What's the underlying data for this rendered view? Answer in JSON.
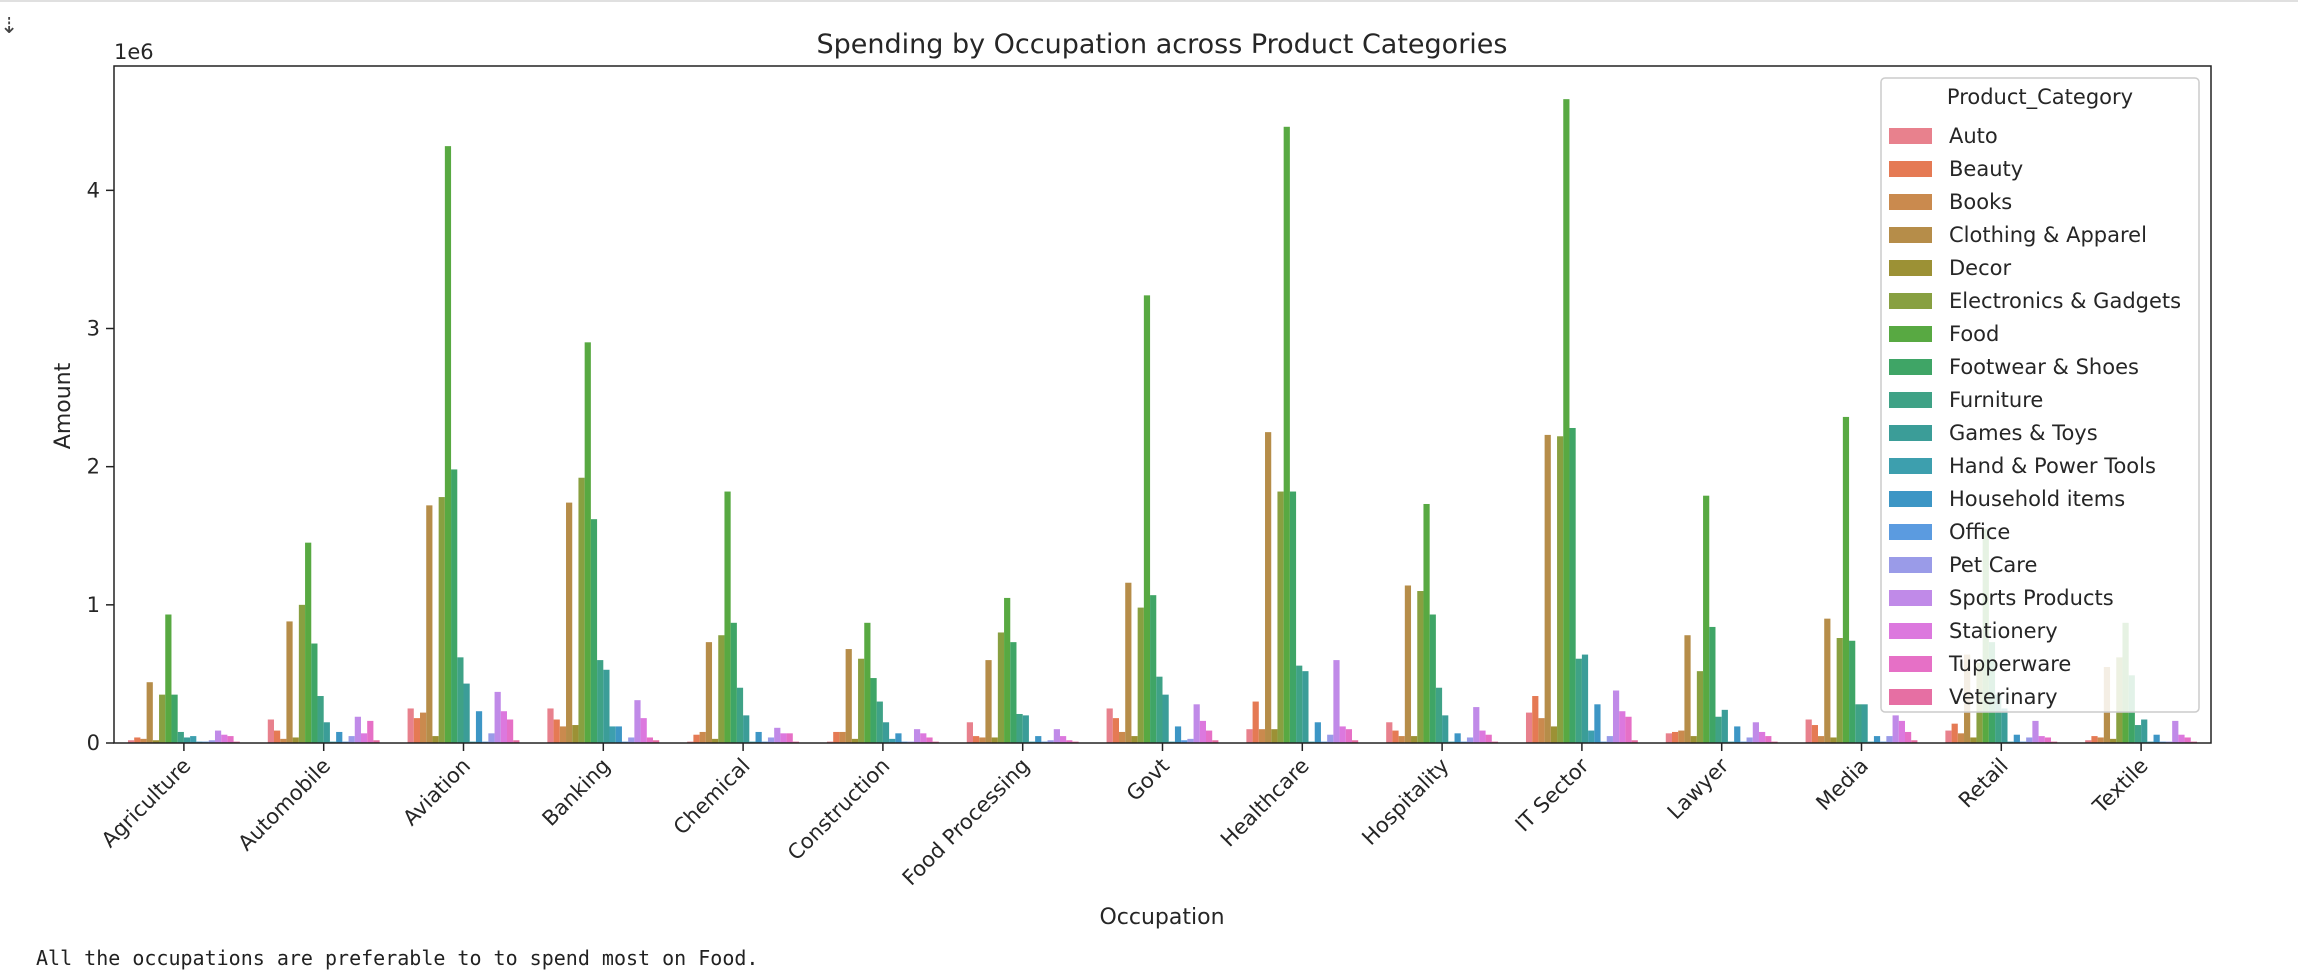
{
  "output_text": "All the occupations are preferable to to spend most on Food.",
  "chart_data": {
    "type": "bar",
    "title": "Spending by Occupation across Product Categories",
    "xlabel": "Occupation",
    "ylabel": "Amount",
    "y_offset_label": "1e6",
    "ylim": [
      0,
      4.9
    ],
    "yticks": [
      0,
      1,
      2,
      3,
      4
    ],
    "legend_title": "Product_Category",
    "legend_position": "top-right",
    "grid": false,
    "categories": [
      "Agriculture",
      "Automobile",
      "Aviation",
      "Banking",
      "Chemical",
      "Construction",
      "Food Processing",
      "Govt",
      "Healthcare",
      "Hospitality",
      "IT Sector",
      "Lawyer",
      "Media",
      "Retail",
      "Textile"
    ],
    "series": [
      {
        "name": "Auto",
        "color": "#e8818d",
        "values": [
          0.02,
          0.17,
          0.25,
          0.25,
          0.01,
          0.01,
          0.15,
          0.25,
          0.1,
          0.15,
          0.22,
          0.07,
          0.17,
          0.09,
          0.02
        ]
      },
      {
        "name": "Beauty",
        "color": "#e57a54",
        "values": [
          0.04,
          0.09,
          0.18,
          0.17,
          0.06,
          0.08,
          0.05,
          0.18,
          0.3,
          0.09,
          0.34,
          0.08,
          0.13,
          0.14,
          0.05
        ]
      },
      {
        "name": "Books",
        "color": "#ca8a4e",
        "values": [
          0.03,
          0.03,
          0.22,
          0.12,
          0.08,
          0.08,
          0.04,
          0.08,
          0.1,
          0.05,
          0.18,
          0.09,
          0.05,
          0.07,
          0.04
        ]
      },
      {
        "name": "Clothing & Apparel",
        "color": "#b68d49",
        "values": [
          0.44,
          0.88,
          1.72,
          1.74,
          0.73,
          0.68,
          0.6,
          1.16,
          2.25,
          1.14,
          2.23,
          0.78,
          0.9,
          0.64,
          0.55
        ]
      },
      {
        "name": "Decor",
        "color": "#9c9135",
        "values": [
          0.02,
          0.04,
          0.05,
          0.13,
          0.03,
          0.03,
          0.04,
          0.05,
          0.1,
          0.05,
          0.12,
          0.05,
          0.04,
          0.04,
          0.03
        ]
      },
      {
        "name": "Electronics & Gadgets",
        "color": "#88a041",
        "values": [
          0.35,
          1.0,
          1.78,
          1.92,
          0.78,
          0.61,
          0.8,
          0.98,
          1.82,
          1.1,
          2.22,
          0.52,
          0.76,
          0.58,
          0.62
        ]
      },
      {
        "name": "Food",
        "color": "#58a942",
        "values": [
          0.93,
          1.45,
          4.32,
          2.9,
          1.82,
          0.87,
          1.05,
          3.24,
          4.46,
          1.73,
          4.66,
          1.79,
          2.36,
          1.55,
          0.87
        ]
      },
      {
        "name": "Footwear & Shoes",
        "color": "#3fa566",
        "values": [
          0.35,
          0.72,
          1.98,
          1.62,
          0.87,
          0.47,
          0.73,
          1.07,
          1.82,
          0.93,
          2.28,
          0.84,
          0.74,
          0.73,
          0.49
        ]
      },
      {
        "name": "Furniture",
        "color": "#3fa286",
        "values": [
          0.08,
          0.34,
          0.62,
          0.6,
          0.4,
          0.3,
          0.21,
          0.48,
          0.56,
          0.4,
          0.61,
          0.19,
          0.28,
          0.35,
          0.13
        ]
      },
      {
        "name": "Games & Toys",
        "color": "#3b9d98",
        "values": [
          0.04,
          0.15,
          0.43,
          0.53,
          0.2,
          0.15,
          0.2,
          0.35,
          0.52,
          0.2,
          0.64,
          0.24,
          0.28,
          0.25,
          0.17
        ]
      },
      {
        "name": "Hand & Power Tools",
        "color": "#3d9fae",
        "values": [
          0.05,
          0.01,
          0.01,
          0.12,
          0.01,
          0.03,
          0.01,
          0.01,
          0.01,
          0.01,
          0.09,
          0.01,
          0.01,
          0.01,
          0.01
        ]
      },
      {
        "name": "Household items",
        "color": "#3d96c5",
        "values": [
          0.01,
          0.08,
          0.23,
          0.12,
          0.08,
          0.07,
          0.05,
          0.12,
          0.15,
          0.07,
          0.28,
          0.12,
          0.05,
          0.06,
          0.06
        ]
      },
      {
        "name": "Office",
        "color": "#5b9be0",
        "values": [
          0.01,
          0.01,
          0.01,
          0.01,
          0.01,
          0.01,
          0.01,
          0.02,
          0.01,
          0.01,
          0.01,
          0.01,
          0.01,
          0.01,
          0.01
        ]
      },
      {
        "name": "Pet Care",
        "color": "#9a9be8",
        "values": [
          0.02,
          0.05,
          0.07,
          0.04,
          0.04,
          0.01,
          0.02,
          0.03,
          0.06,
          0.04,
          0.05,
          0.04,
          0.05,
          0.04,
          0.01
        ]
      },
      {
        "name": "Sports Products",
        "color": "#c08ae8",
        "values": [
          0.09,
          0.19,
          0.37,
          0.31,
          0.11,
          0.1,
          0.1,
          0.28,
          0.6,
          0.26,
          0.38,
          0.15,
          0.2,
          0.16,
          0.16
        ]
      },
      {
        "name": "Stationery",
        "color": "#dc78de",
        "values": [
          0.06,
          0.07,
          0.23,
          0.18,
          0.07,
          0.07,
          0.05,
          0.16,
          0.12,
          0.09,
          0.23,
          0.08,
          0.16,
          0.05,
          0.06
        ]
      },
      {
        "name": "Tupperware",
        "color": "#e670c6",
        "values": [
          0.05,
          0.16,
          0.17,
          0.04,
          0.07,
          0.04,
          0.02,
          0.09,
          0.1,
          0.06,
          0.19,
          0.05,
          0.08,
          0.04,
          0.04
        ]
      },
      {
        "name": "Veterinary",
        "color": "#e66fa3",
        "values": [
          0.01,
          0.02,
          0.02,
          0.02,
          0.01,
          0.01,
          0.01,
          0.02,
          0.02,
          0.01,
          0.02,
          0.01,
          0.02,
          0.01,
          0.01
        ]
      }
    ]
  }
}
